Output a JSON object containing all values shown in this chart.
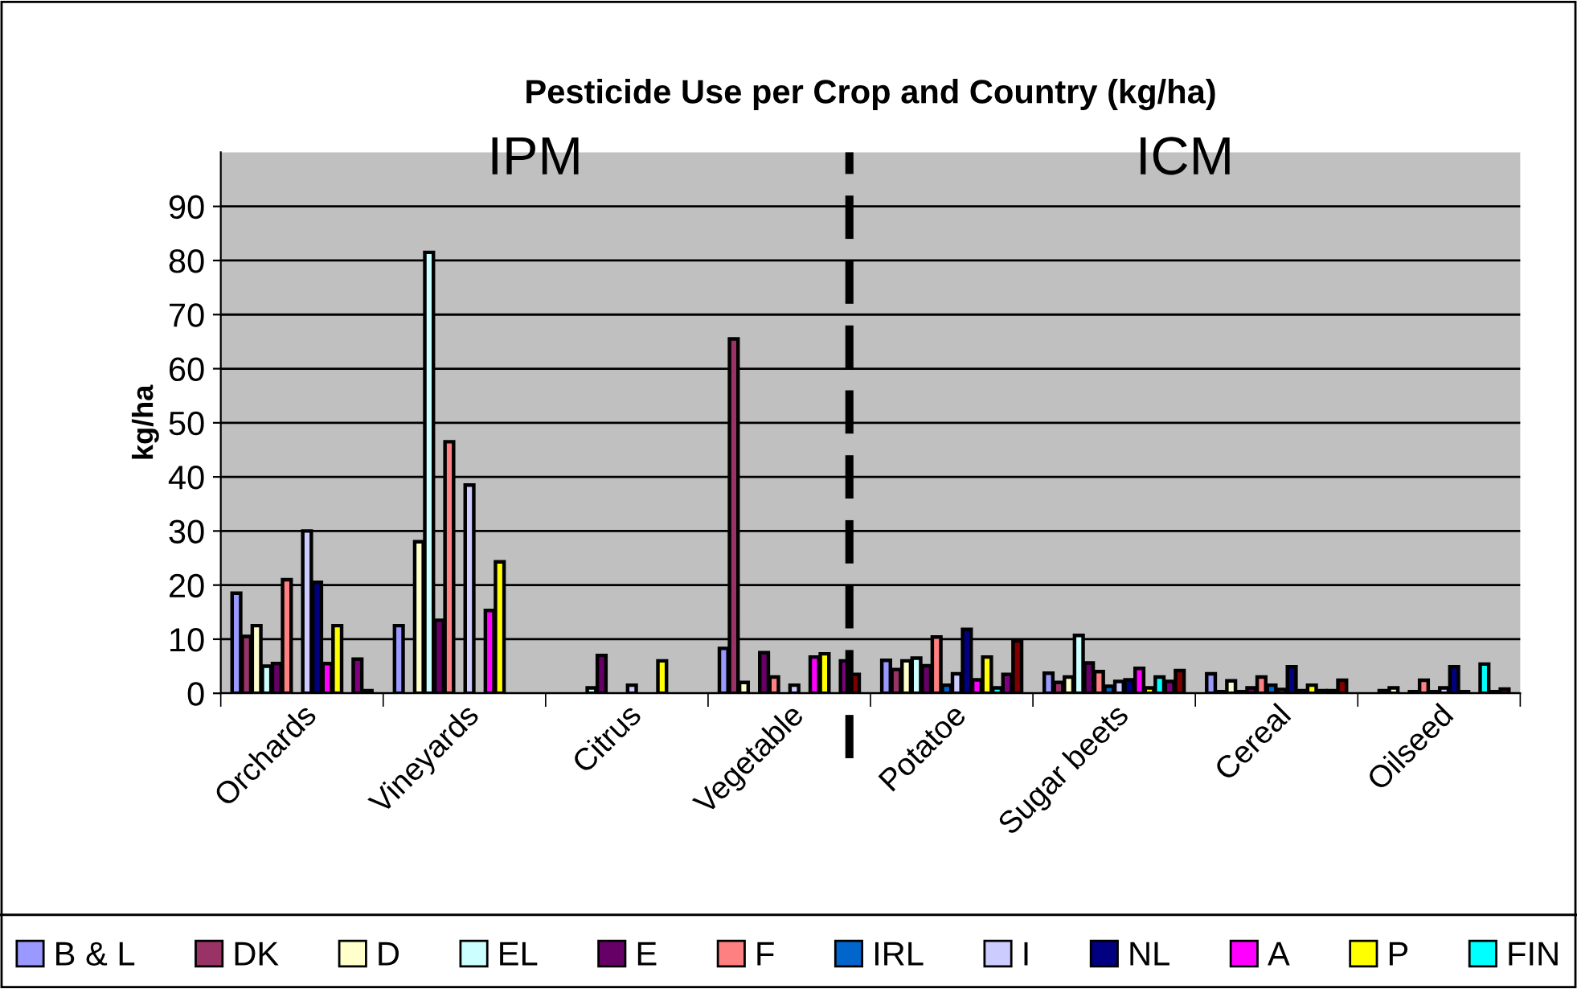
{
  "chart_data": {
    "type": "bar",
    "title": "Pesticide Use per Crop and Country (kg/ha)",
    "ylabel": "kg/ha",
    "categories": [
      "Orchards",
      "Vineyards",
      "Citrus",
      "Vegetable",
      "Potatoe",
      "Sugar beets",
      "Cereal",
      "Oilseed"
    ],
    "series": [
      {
        "name": "B & L",
        "color": "#9999ff",
        "values": [
          18.5,
          12.5,
          null,
          8.3,
          6.1,
          3.7,
          3.6,
          null
        ]
      },
      {
        "name": "DK",
        "color": "#993366",
        "values": [
          10.5,
          null,
          null,
          65.5,
          4.4,
          2,
          0.3,
          0.5
        ]
      },
      {
        "name": "D",
        "color": "#ffffcc",
        "values": [
          12.5,
          28,
          null,
          2,
          6,
          3,
          2.3,
          1
        ]
      },
      {
        "name": "EL",
        "color": "#ccffff",
        "values": [
          5,
          81.5,
          1,
          null,
          6.5,
          10.7,
          0.3,
          null
        ]
      },
      {
        "name": "E",
        "color": "#660066",
        "values": [
          5.5,
          13.5,
          7,
          7.5,
          5.1,
          5.6,
          1,
          0.3
        ]
      },
      {
        "name": "F",
        "color": "#ff8080",
        "values": [
          21,
          46.5,
          null,
          3,
          10.4,
          4,
          3,
          2.4
        ]
      },
      {
        "name": "IRL",
        "color": "#0066cc",
        "values": [
          null,
          null,
          null,
          null,
          1.5,
          1.3,
          1.5,
          0.3
        ]
      },
      {
        "name": "I",
        "color": "#ccccff",
        "values": [
          30,
          38.5,
          1.5,
          1.5,
          3.6,
          2.2,
          0.7,
          1
        ]
      },
      {
        "name": "NL",
        "color": "#000080",
        "values": [
          20.5,
          null,
          null,
          null,
          11.8,
          2.5,
          4.9,
          4.9
        ]
      },
      {
        "name": "A",
        "color": "#ff00ff",
        "values": [
          5.5,
          15.3,
          null,
          6.7,
          2.5,
          4.6,
          0.5,
          0.3
        ]
      },
      {
        "name": "P",
        "color": "#ffff00",
        "values": [
          12.5,
          24.3,
          6,
          7.3,
          6.7,
          1,
          1.5,
          null
        ]
      },
      {
        "name": "FIN",
        "color": "#00ffff",
        "values": [
          null,
          null,
          null,
          null,
          1,
          3,
          0.5,
          5.4
        ]
      },
      {
        "color": "#800080",
        "values": [
          6.3,
          null,
          null,
          6,
          3.5,
          2.2,
          0.5,
          0.3
        ]
      },
      {
        "color": "#800000",
        "values": [
          0.5,
          null,
          null,
          3.5,
          9.7,
          4.2,
          2.4,
          0.8
        ]
      }
    ],
    "ylim": [
      0,
      100
    ],
    "yticks": [
      0,
      10,
      20,
      30,
      40,
      50,
      60,
      70,
      80,
      90
    ],
    "grid": "y",
    "legend": "bottom",
    "annotations": [
      "IPM",
      "ICM"
    ]
  }
}
